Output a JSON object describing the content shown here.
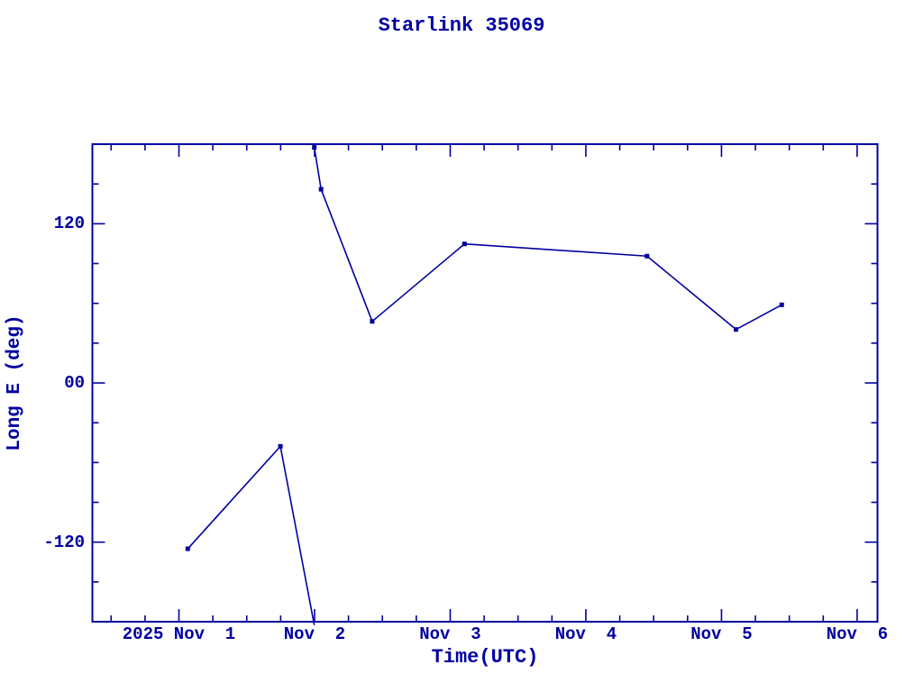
{
  "colors": {
    "ink": "#0000A0",
    "background": "#ffffff"
  },
  "chart_data": {
    "type": "line",
    "title": "Starlink 35069",
    "xlabel": "Time(UTC)",
    "ylabel": "Long E (deg)",
    "x_unit": "day of November 2025 (UTC), fractional",
    "xlim": [
      0.362,
      6.15
    ],
    "ylim": [
      -180,
      180
    ],
    "grid": false,
    "legend": "none",
    "wrap_degrees": 360,
    "x_axis": {
      "label": "Time(UTC)",
      "minor_tick_step_days": 0.25,
      "ticks": [
        {
          "value": 1,
          "label": "2025 Nov  1"
        },
        {
          "value": 2,
          "label": "Nov  2"
        },
        {
          "value": 3,
          "label": "Nov  3"
        },
        {
          "value": 4,
          "label": "Nov  4"
        },
        {
          "value": 5,
          "label": "Nov  5"
        },
        {
          "value": 6,
          "label": "Nov  6"
        }
      ]
    },
    "y_axis": {
      "label": "Long E (deg)",
      "minor_tick_step_deg": 30,
      "ticks": [
        {
          "value": 120,
          "label": "120"
        },
        {
          "value": 0,
          "label": "00"
        },
        {
          "value": -120,
          "label": "-120"
        }
      ]
    },
    "series": [
      {
        "name": "Long E",
        "marker": "filled-square",
        "points": [
          {
            "x": 1.065,
            "y": -125.0
          },
          {
            "x": 1.748,
            "y": -47.8
          },
          {
            "x": 1.998,
            "y": 177.5
          },
          {
            "x": 2.048,
            "y": 146.0
          },
          {
            "x": 2.425,
            "y": 46.4
          },
          {
            "x": 3.105,
            "y": 104.8
          },
          {
            "x": 4.451,
            "y": 95.6
          },
          {
            "x": 5.107,
            "y": 40.3
          },
          {
            "x": 5.444,
            "y": 58.9
          }
        ]
      }
    ]
  }
}
